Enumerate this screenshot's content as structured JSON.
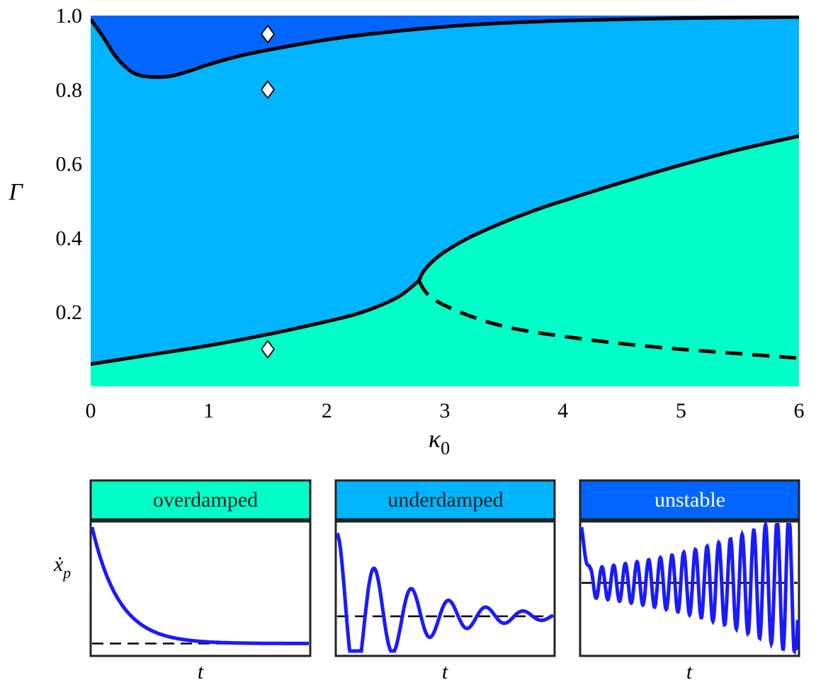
{
  "colors": {
    "overdamped": "#00ffc8",
    "underdamped": "#00b4ff",
    "unstable": "#0066ff",
    "boundary": "#000000",
    "marker_fill": "#ffffff",
    "trace": "#1a1aff"
  },
  "chart_data": [
    {
      "type": "area",
      "xlabel": "κ",
      "xlabel_sub": "0",
      "ylabel": "Γ",
      "xlim": [
        0,
        6
      ],
      "ylim": [
        0,
        1
      ],
      "x_ticks": [
        "0",
        "1",
        "2",
        "3",
        "4",
        "5",
        "6"
      ],
      "y_ticks": [
        "0.2",
        "0.4",
        "0.6",
        "0.8",
        "1.0"
      ],
      "grid": false,
      "regions": [
        "unstable",
        "underdamped",
        "overdamped"
      ],
      "boundaries": {
        "unstable_upper": {
          "style": "solid",
          "x": [
            0,
            0.1,
            0.2,
            0.3,
            0.4,
            0.55,
            0.7,
            0.85,
            1.0,
            1.25,
            1.5,
            2.0,
            2.5,
            3.0,
            3.5,
            4.0,
            5.0,
            6.0
          ],
          "y": [
            0.99,
            0.945,
            0.895,
            0.86,
            0.84,
            0.834,
            0.838,
            0.852,
            0.868,
            0.89,
            0.907,
            0.935,
            0.955,
            0.97,
            0.98,
            0.986,
            0.993,
            0.996
          ]
        },
        "lower_branch": {
          "style": "solid",
          "x": [
            0,
            0.5,
            1.0,
            1.5,
            2.0,
            2.3,
            2.6,
            2.78
          ],
          "y": [
            0.06,
            0.085,
            0.11,
            0.14,
            0.175,
            0.2,
            0.24,
            0.285
          ]
        },
        "upper_branch": {
          "style": "solid",
          "x": [
            2.78,
            2.82,
            2.9,
            3.0,
            3.2,
            3.5,
            3.8,
            4.0,
            4.5,
            5.0,
            5.5,
            6.0
          ],
          "y": [
            0.285,
            0.31,
            0.338,
            0.363,
            0.4,
            0.443,
            0.479,
            0.5,
            0.55,
            0.597,
            0.639,
            0.675
          ]
        },
        "dashed_branch": {
          "style": "dashed",
          "x": [
            2.78,
            2.85,
            3.0,
            3.3,
            3.6,
            4.0,
            4.5,
            5.0,
            5.5,
            6.0
          ],
          "y": [
            0.285,
            0.25,
            0.218,
            0.18,
            0.155,
            0.135,
            0.115,
            0.1,
            0.088,
            0.076
          ]
        }
      },
      "markers": [
        {
          "x": 1.5,
          "y": 0.95
        },
        {
          "x": 1.5,
          "y": 0.8
        },
        {
          "x": 1.5,
          "y": 0.1
        }
      ]
    },
    {
      "type": "line",
      "title": "overdamped",
      "xlabel": "t",
      "ylabel": "ẋ",
      "ylabel_sub": "p",
      "behavior": "overdamped",
      "baseline": 0.06,
      "start": 1.0,
      "decay": 8.0
    },
    {
      "type": "line",
      "title": "underdamped",
      "xlabel": "t",
      "behavior": "underdamped",
      "baseline": 0.28,
      "start": 0.95,
      "decay": 3.2,
      "frequency": 5.8
    },
    {
      "type": "line",
      "title": "unstable",
      "xlabel": "t",
      "behavior": "unstable",
      "baseline": 0.55,
      "start": 1.0,
      "oscillations": 18.5,
      "growth": 1.7
    }
  ]
}
